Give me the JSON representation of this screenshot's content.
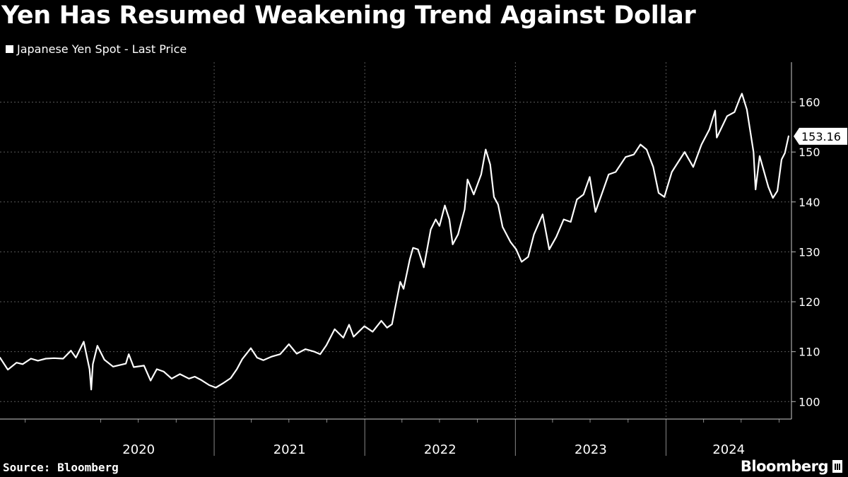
{
  "title": "Yen Has Resumed Weakening Trend Against Dollar",
  "legend": {
    "label": "Japanese Yen Spot - Last Price",
    "color": "#ffffff"
  },
  "source": "Source: Bloomberg",
  "brand": "Bloomberg",
  "chart_data": {
    "type": "line",
    "title": "Yen Has Resumed Weakening Trend Against Dollar",
    "series": [
      {
        "name": "Japanese Yen Spot - Last Price",
        "color": "#ffffff",
        "points": [
          [
            "2019-08-01",
            108.8
          ],
          [
            "2019-08-20",
            106.4
          ],
          [
            "2019-09-10",
            107.8
          ],
          [
            "2019-09-25",
            107.5
          ],
          [
            "2019-10-15",
            108.6
          ],
          [
            "2019-11-01",
            108.2
          ],
          [
            "2019-11-20",
            108.6
          ],
          [
            "2019-12-10",
            108.7
          ],
          [
            "2020-01-01",
            108.6
          ],
          [
            "2020-01-20",
            110.2
          ],
          [
            "2020-02-01",
            108.8
          ],
          [
            "2020-02-20",
            112.0
          ],
          [
            "2020-03-05",
            106.5
          ],
          [
            "2020-03-09",
            102.4
          ],
          [
            "2020-03-13",
            107.5
          ],
          [
            "2020-03-24",
            111.2
          ],
          [
            "2020-04-10",
            108.4
          ],
          [
            "2020-05-01",
            107.0
          ],
          [
            "2020-06-01",
            107.6
          ],
          [
            "2020-06-08",
            109.5
          ],
          [
            "2020-06-20",
            106.9
          ],
          [
            "2020-07-15",
            107.2
          ],
          [
            "2020-07-31",
            104.2
          ],
          [
            "2020-08-15",
            106.5
          ],
          [
            "2020-09-01",
            106.0
          ],
          [
            "2020-09-20",
            104.6
          ],
          [
            "2020-10-10",
            105.5
          ],
          [
            "2020-11-01",
            104.6
          ],
          [
            "2020-11-15",
            105.0
          ],
          [
            "2020-12-01",
            104.3
          ],
          [
            "2020-12-20",
            103.3
          ],
          [
            "2021-01-05",
            102.8
          ],
          [
            "2021-01-25",
            103.8
          ],
          [
            "2021-02-10",
            104.7
          ],
          [
            "2021-02-25",
            106.5
          ],
          [
            "2021-03-10",
            108.5
          ],
          [
            "2021-03-31",
            110.7
          ],
          [
            "2021-04-15",
            108.8
          ],
          [
            "2021-04-30",
            108.3
          ],
          [
            "2021-05-20",
            109.0
          ],
          [
            "2021-06-10",
            109.5
          ],
          [
            "2021-07-01",
            111.5
          ],
          [
            "2021-07-20",
            109.6
          ],
          [
            "2021-08-10",
            110.5
          ],
          [
            "2021-09-01",
            110.0
          ],
          [
            "2021-09-15",
            109.5
          ],
          [
            "2021-09-30",
            111.3
          ],
          [
            "2021-10-20",
            114.5
          ],
          [
            "2021-11-10",
            112.8
          ],
          [
            "2021-11-24",
            115.4
          ],
          [
            "2021-12-05",
            113.0
          ],
          [
            "2021-12-31",
            115.1
          ],
          [
            "2022-01-20",
            114.0
          ],
          [
            "2022-02-10",
            116.2
          ],
          [
            "2022-02-24",
            114.8
          ],
          [
            "2022-03-08",
            115.5
          ],
          [
            "2022-03-15",
            118.5
          ],
          [
            "2022-03-28",
            124.0
          ],
          [
            "2022-04-05",
            122.6
          ],
          [
            "2022-04-20",
            128.5
          ],
          [
            "2022-04-28",
            130.8
          ],
          [
            "2022-05-10",
            130.5
          ],
          [
            "2022-05-24",
            126.9
          ],
          [
            "2022-06-10",
            134.5
          ],
          [
            "2022-06-22",
            136.5
          ],
          [
            "2022-07-01",
            135.2
          ],
          [
            "2022-07-14",
            139.3
          ],
          [
            "2022-07-25",
            136.5
          ],
          [
            "2022-08-02",
            131.5
          ],
          [
            "2022-08-15",
            133.5
          ],
          [
            "2022-08-31",
            138.5
          ],
          [
            "2022-09-07",
            144.5
          ],
          [
            "2022-09-22",
            141.5
          ],
          [
            "2022-10-10",
            145.5
          ],
          [
            "2022-10-21",
            150.5
          ],
          [
            "2022-11-01",
            147.5
          ],
          [
            "2022-11-10",
            141.0
          ],
          [
            "2022-11-20",
            139.5
          ],
          [
            "2022-12-01",
            135.0
          ],
          [
            "2022-12-20",
            132.0
          ],
          [
            "2023-01-03",
            130.5
          ],
          [
            "2023-01-16",
            128.0
          ],
          [
            "2023-02-01",
            129.0
          ],
          [
            "2023-02-15",
            133.5
          ],
          [
            "2023-03-08",
            137.5
          ],
          [
            "2023-03-24",
            130.5
          ],
          [
            "2023-04-10",
            133.0
          ],
          [
            "2023-04-28",
            136.5
          ],
          [
            "2023-05-15",
            136.0
          ],
          [
            "2023-05-30",
            140.5
          ],
          [
            "2023-06-15",
            141.5
          ],
          [
            "2023-06-30",
            145.0
          ],
          [
            "2023-07-14",
            138.0
          ],
          [
            "2023-07-31",
            142.0
          ],
          [
            "2023-08-15",
            145.5
          ],
          [
            "2023-09-01",
            146.0
          ],
          [
            "2023-09-25",
            149.0
          ],
          [
            "2023-10-15",
            149.5
          ],
          [
            "2023-10-31",
            151.5
          ],
          [
            "2023-11-15",
            150.5
          ],
          [
            "2023-12-01",
            147.0
          ],
          [
            "2023-12-14",
            141.8
          ],
          [
            "2023-12-28",
            141.0
          ],
          [
            "2024-01-15",
            146.0
          ],
          [
            "2024-02-15",
            150.0
          ],
          [
            "2024-03-07",
            147.0
          ],
          [
            "2024-03-27",
            151.5
          ],
          [
            "2024-04-15",
            154.5
          ],
          [
            "2024-04-29",
            158.3
          ],
          [
            "2024-05-03",
            152.9
          ],
          [
            "2024-05-28",
            157.2
          ],
          [
            "2024-06-15",
            158.0
          ],
          [
            "2024-06-28",
            160.8
          ],
          [
            "2024-07-03",
            161.7
          ],
          [
            "2024-07-15",
            158.5
          ],
          [
            "2024-07-31",
            150.0
          ],
          [
            "2024-08-05",
            142.5
          ],
          [
            "2024-08-15",
            149.2
          ],
          [
            "2024-09-05",
            143.0
          ],
          [
            "2024-09-16",
            140.8
          ],
          [
            "2024-09-27",
            142.2
          ],
          [
            "2024-10-07",
            148.5
          ],
          [
            "2024-10-15",
            149.8
          ],
          [
            "2024-10-24",
            153.16
          ]
        ]
      }
    ],
    "last_value_label": "153.16",
    "x_tick_labels": [
      "2020",
      "2021",
      "2022",
      "2023",
      "2024"
    ],
    "y_ticks": [
      100,
      110,
      120,
      130,
      140,
      150,
      160
    ],
    "xlim": [
      "2019-08-01",
      "2024-10-31"
    ],
    "ylim": [
      96.5,
      168
    ],
    "grid": "dotted",
    "y_axis_side": "right",
    "legend_position": "top-left"
  }
}
